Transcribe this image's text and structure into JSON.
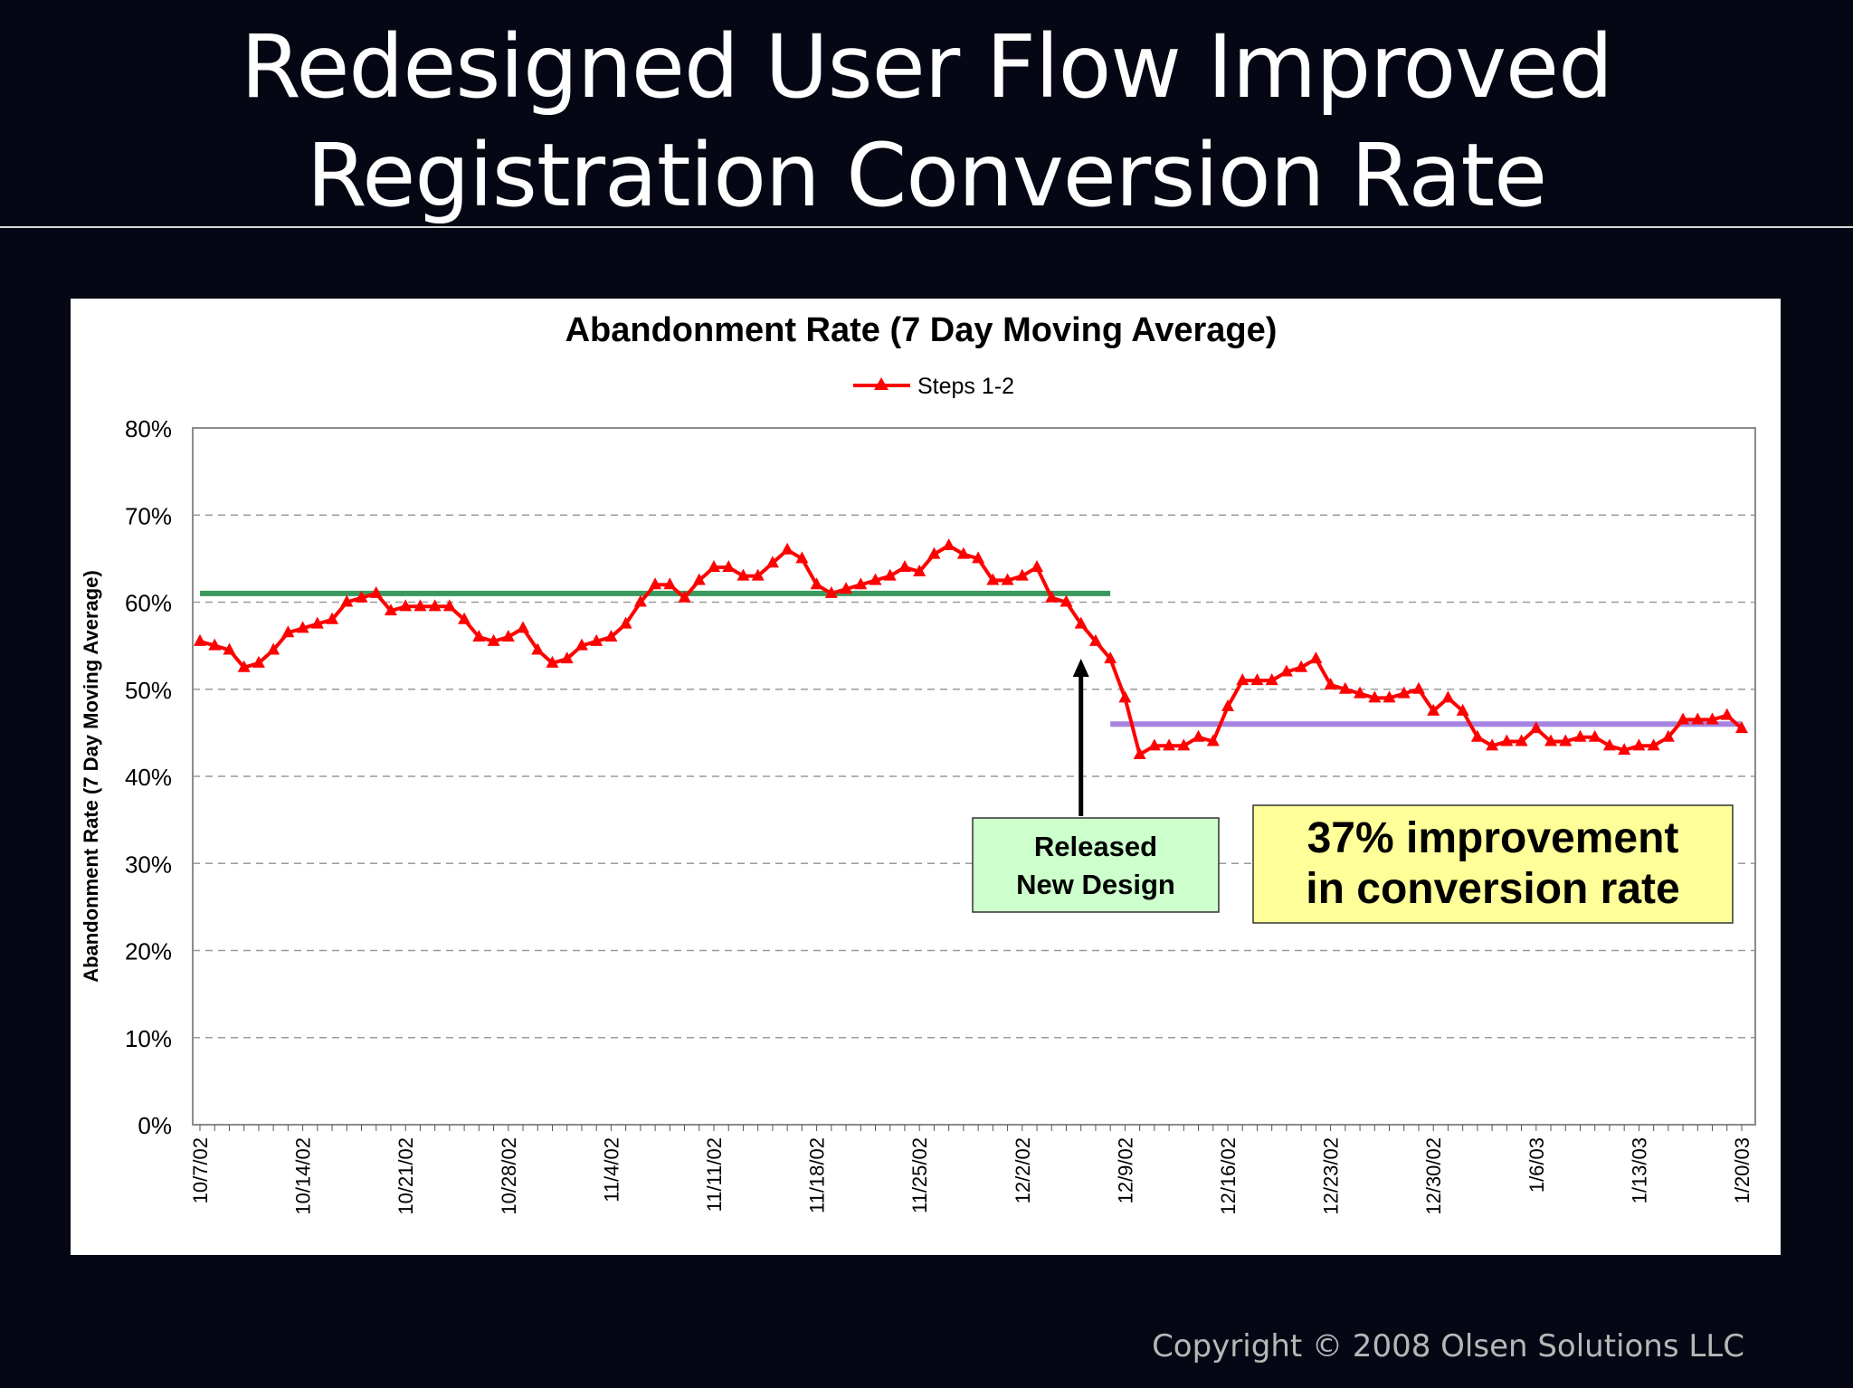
{
  "slide": {
    "title_line1": "Redesigned User Flow Improved",
    "title_line2": "Registration Conversion Rate",
    "copyright": "Copyright © 2008 Olsen Solutions LLC"
  },
  "colors": {
    "background": "#050814",
    "series": "#ff0000",
    "before_line": "#3a9a5e",
    "after_line": "#a683e0",
    "callout_green": "#ccffcc",
    "callout_yellow": "#ffff99"
  },
  "chart_data": {
    "type": "line",
    "title": "Abandonment Rate (7 Day Moving Average)",
    "ylabel": "Abandonment Rate (7 Day Moving Average)",
    "xlabel": "",
    "ylim": [
      0,
      80
    ],
    "yticks": [
      "0%",
      "10%",
      "20%",
      "30%",
      "40%",
      "50%",
      "60%",
      "70%",
      "80%"
    ],
    "grid": "horizontal dashed",
    "legend_position": "top-center",
    "x_start": "10/7/02",
    "x_end": "1/20/03",
    "xticks": [
      "10/7/02",
      "10/14/02",
      "10/21/02",
      "10/28/02",
      "11/4/02",
      "11/11/02",
      "11/18/02",
      "11/25/02",
      "12/2/02",
      "12/9/02",
      "12/16/02",
      "12/23/02",
      "12/30/02",
      "1/6/03",
      "1/13/03",
      "1/20/03"
    ],
    "series": [
      {
        "name": "Steps 1-2",
        "color": "#ff0000",
        "marker": "triangle",
        "values": [
          55.5,
          55,
          54.5,
          52.5,
          53,
          54.5,
          56.5,
          57,
          57.5,
          58,
          60,
          60.5,
          61,
          59,
          59.5,
          59.5,
          59.5,
          59.5,
          58,
          56,
          55.5,
          56,
          57,
          54.5,
          53,
          53.5,
          55,
          55.5,
          56,
          57.5,
          60,
          62,
          62,
          60.5,
          62.5,
          64,
          64,
          63,
          63,
          64.5,
          66,
          65,
          62,
          61,
          61.5,
          62,
          62.5,
          63,
          64,
          63.5,
          65.5,
          66.5,
          65.5,
          65,
          62.5,
          62.5,
          63,
          64,
          60.5,
          60,
          57.5,
          55.5,
          53.5,
          49,
          42.5,
          43.5,
          43.5,
          43.5,
          44.5,
          44,
          48,
          51,
          51,
          51,
          52,
          52.5,
          53.5,
          50.5,
          50,
          49.5,
          49,
          49,
          49.5,
          50,
          47.5,
          49,
          47.5,
          44.5,
          43.5,
          44,
          44,
          45.5,
          44,
          44,
          44.5,
          44.5,
          43.5,
          43,
          43.5,
          43.5,
          44.5,
          46.5,
          46.5,
          46.5,
          47,
          45.5
        ]
      }
    ],
    "reference_lines": [
      {
        "label": "before",
        "value": 61,
        "from": "10/7/02",
        "to": "12/8/02",
        "color": "#3a9a5e"
      },
      {
        "label": "after",
        "value": 46,
        "from": "12/8/02",
        "to": "1/20/03",
        "color": "#a683e0"
      }
    ],
    "annotations": [
      {
        "text_line1": "Released",
        "text_line2": "New Design",
        "points_to": "12/6/02",
        "color": "#ccffcc"
      },
      {
        "text_line1": "37% improvement",
        "text_line2": "in conversion rate",
        "color": "#ffff99"
      }
    ]
  }
}
